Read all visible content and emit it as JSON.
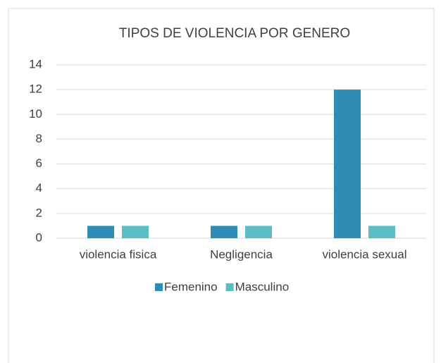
{
  "chart_data": {
    "type": "bar",
    "title": "TIPOS DE VIOLENCIA POR GENERO",
    "categories": [
      "violencia fisica",
      "Negligencia",
      "violencia sexual"
    ],
    "series": [
      {
        "name": "Femenino",
        "color": "#2e8db5",
        "values": [
          1,
          1,
          12
        ]
      },
      {
        "name": "Masculino",
        "color": "#5bbcc4",
        "values": [
          1,
          1,
          1
        ]
      }
    ],
    "ylim": [
      0,
      14
    ],
    "yticks": [
      0,
      2,
      4,
      6,
      8,
      10,
      12,
      14
    ],
    "grid": true,
    "legend": "bottom"
  }
}
